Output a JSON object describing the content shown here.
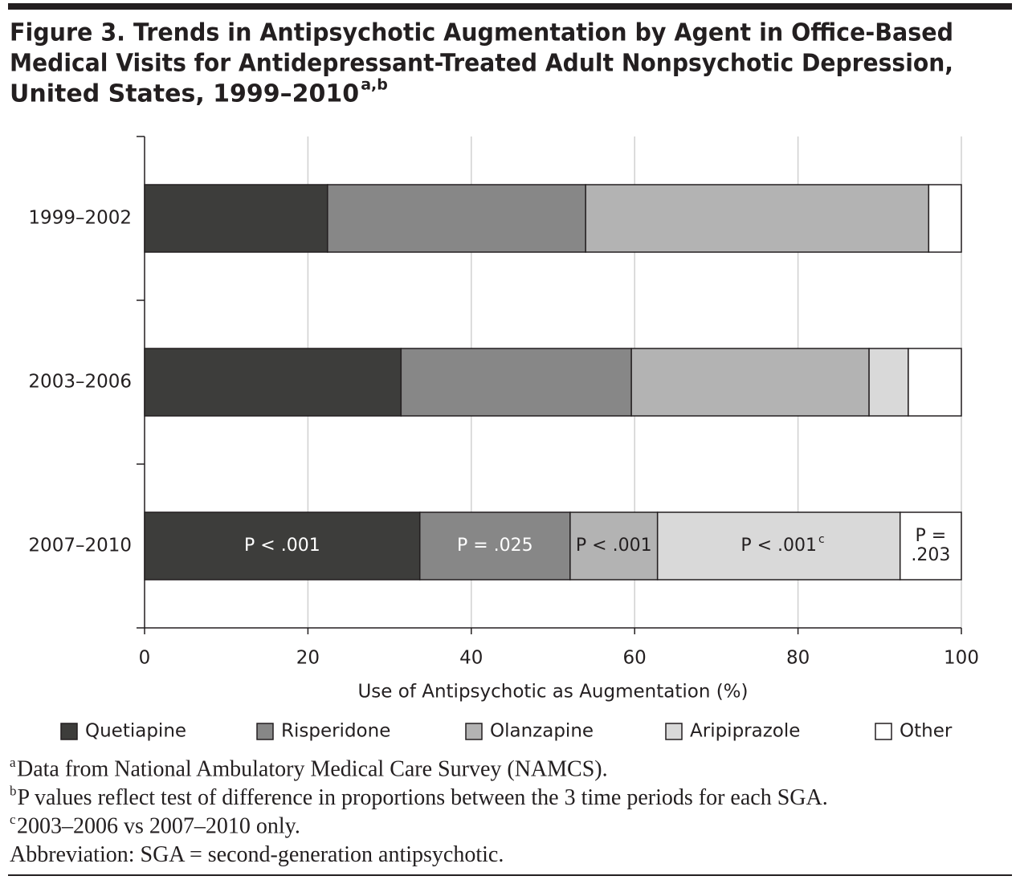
{
  "chart_data": {
    "type": "stacked-bar-horizontal",
    "title_lines": [
      "Figure 3. Trends in Antipsychotic Augmentation by Agent in Office-Based",
      "Medical Visits for Antidepressant-Treated Adult Nonpsychotic Depression,",
      "United States, 1999–2010"
    ],
    "title_sup": "a,b",
    "categories": [
      "1999–2002",
      "2003–2006",
      "2007–2010"
    ],
    "series": [
      {
        "name": "Quetiapine",
        "color": "#3d3d3b",
        "values": [
          22.4,
          31.4,
          33.7
        ]
      },
      {
        "name": "Risperidone",
        "color": "#878787",
        "values": [
          31.6,
          28.2,
          18.4
        ]
      },
      {
        "name": "Olanzapine",
        "color": "#b3b3b3",
        "values": [
          42.0,
          29.1,
          10.7
        ]
      },
      {
        "name": "Aripiprazole",
        "color": "#d9d9d9",
        "values": [
          0,
          4.8,
          29.7
        ]
      },
      {
        "name": "Other",
        "color": "#ffffff",
        "values": [
          4.0,
          6.5,
          7.5
        ]
      }
    ],
    "segment_labels": [
      {
        "lines": [
          "P < .001"
        ]
      },
      {
        "lines": [
          "P = .025"
        ]
      },
      {
        "lines": [
          "P < .001"
        ]
      },
      {
        "lines": [
          "P < .001"
        ],
        "sup": "c"
      },
      {
        "lines": [
          "P =",
          ".203"
        ]
      }
    ],
    "x_label": "Use of Antipsychotic as Augmentation (%)",
    "xlim": [
      0,
      100
    ],
    "xticks": [
      0,
      20,
      40,
      60,
      80,
      100
    ],
    "grid": true,
    "footnotes": [
      {
        "sup": "a",
        "text": "Data from National Ambulatory Medical Care Survey (NAMCS)."
      },
      {
        "sup": "b",
        "text": "P values reflect test of difference in proportions between the 3 time periods for each SGA."
      },
      {
        "sup": "c",
        "text": "2003–2006 vs 2007–2010 only."
      },
      {
        "text": "Abbreviation: SGA = second-generation antipsychotic."
      }
    ]
  }
}
